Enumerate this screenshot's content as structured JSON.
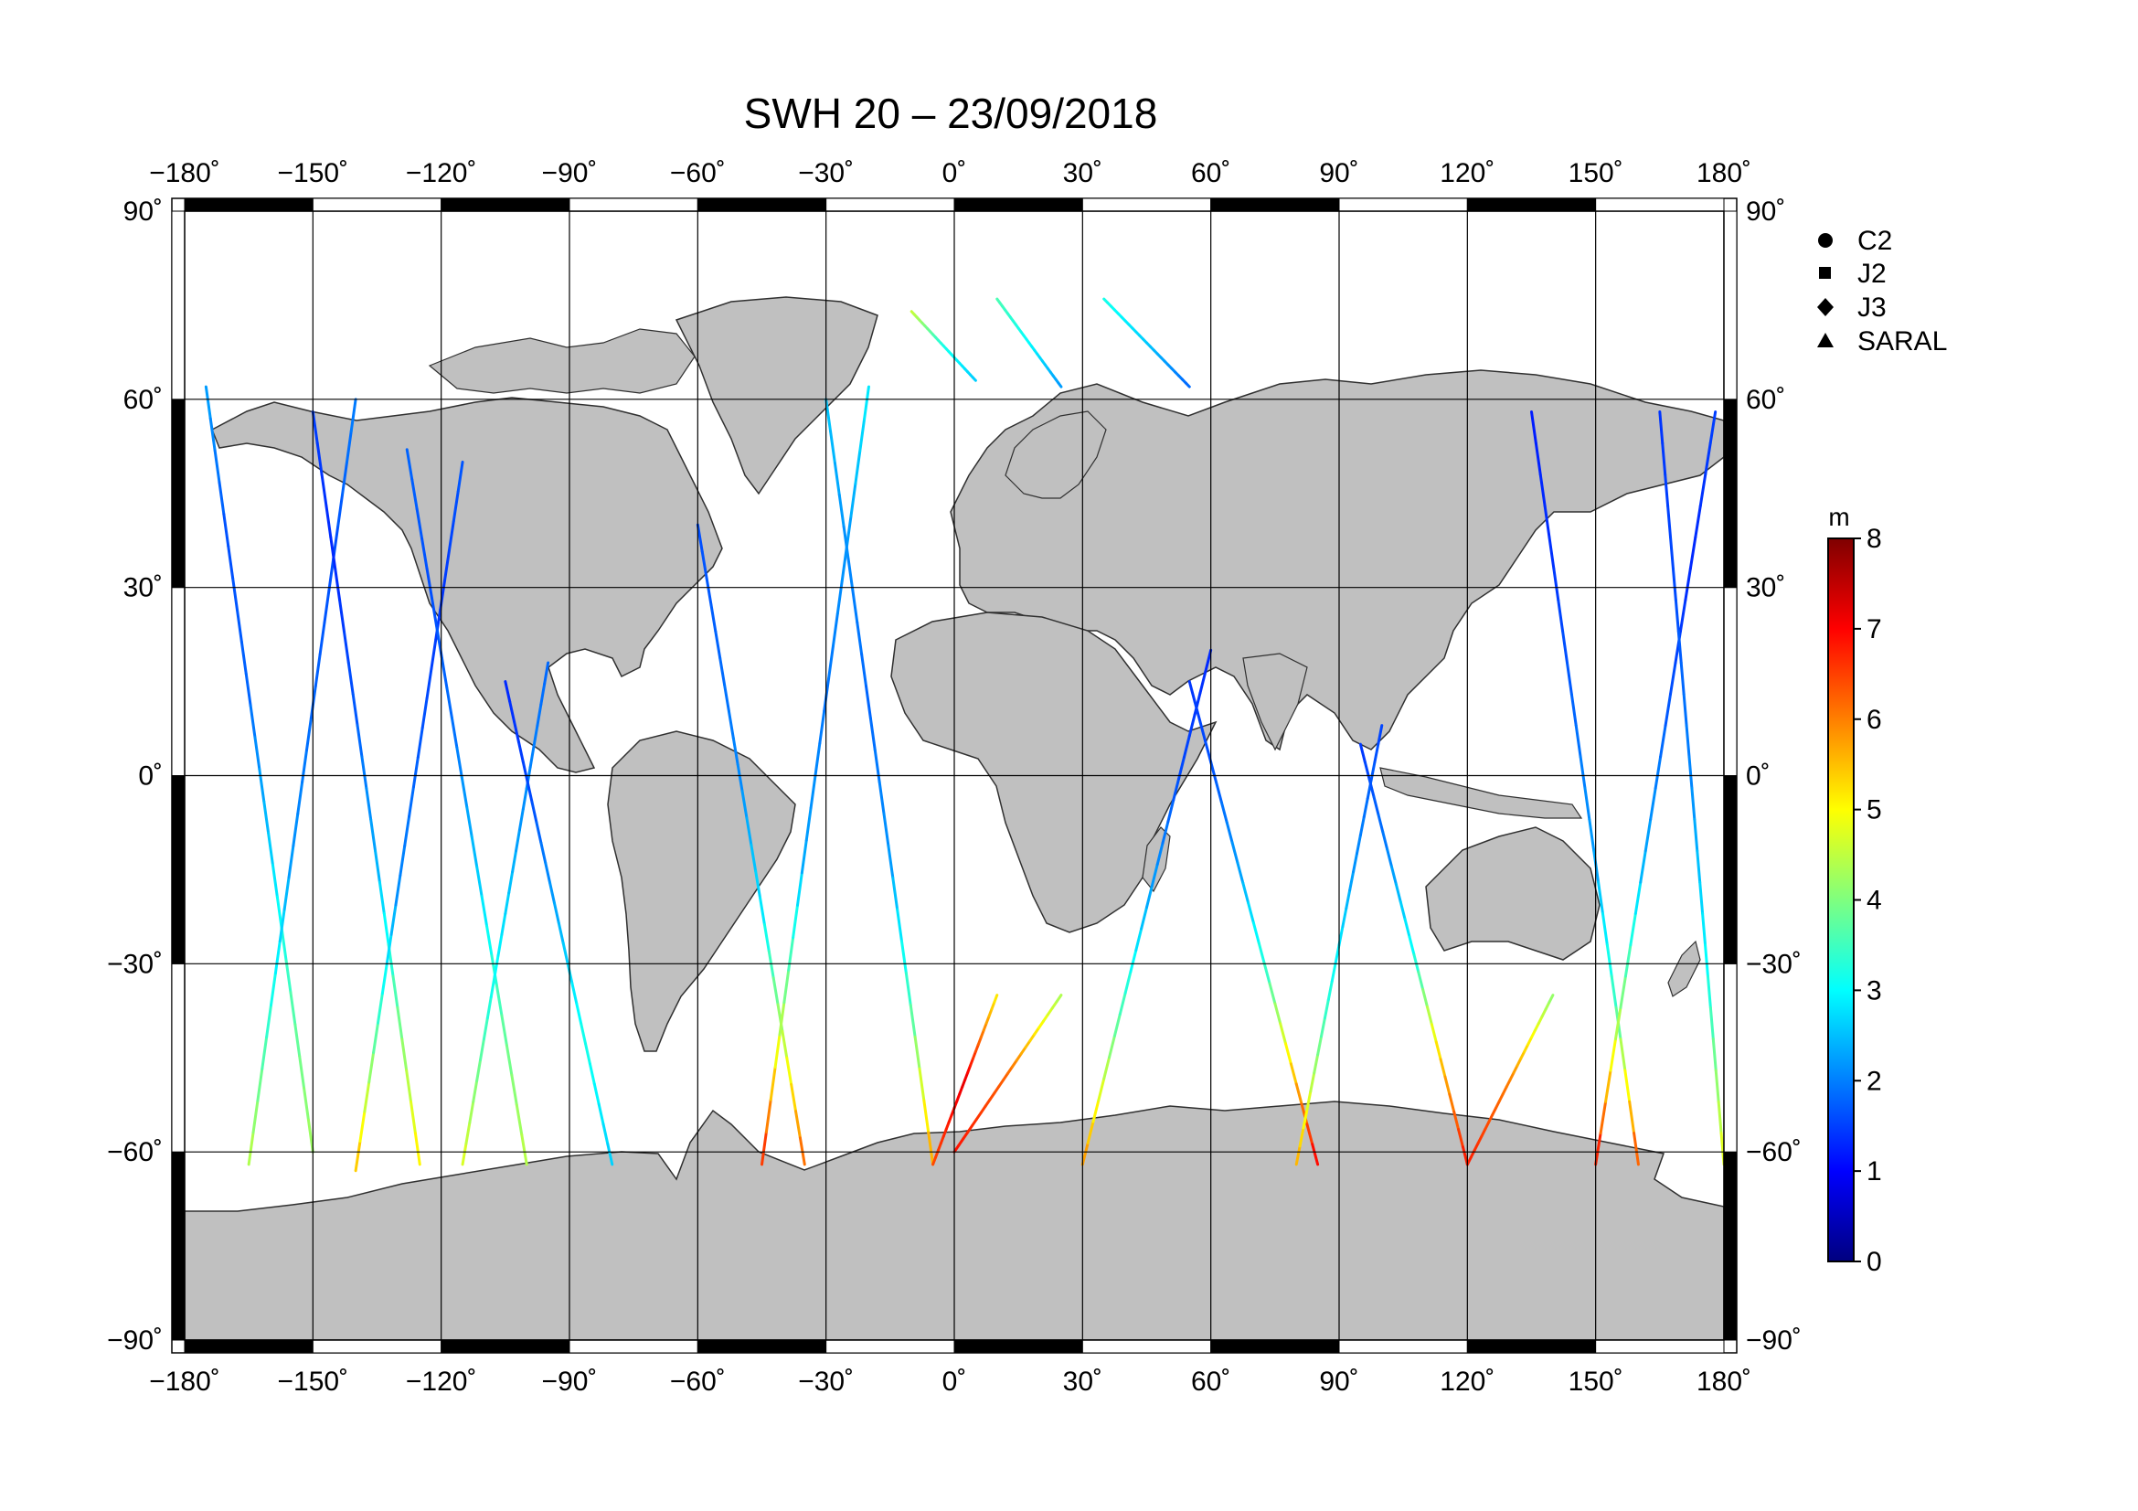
{
  "title": "SWH 20 – 23/09/2018",
  "map": {
    "lon_range": [
      -180,
      180
    ],
    "lat_range": [
      -90,
      90
    ],
    "grid_lons": [
      -180,
      -150,
      -120,
      -90,
      -60,
      -30,
      0,
      30,
      60,
      90,
      120,
      150,
      180
    ],
    "grid_lats": [
      -90,
      -60,
      -30,
      0,
      30,
      60,
      90
    ],
    "lon_tick_labels": [
      "−180˚",
      "−150˚",
      "−120˚",
      "−90˚",
      "−60˚",
      "−30˚",
      "0˚",
      "30˚",
      "60˚",
      "90˚",
      "120˚",
      "150˚",
      "180˚"
    ],
    "lat_tick_labels": [
      "90˚",
      "60˚",
      "30˚",
      "0˚",
      "−30˚",
      "−60˚",
      "−90˚"
    ],
    "land_color": "#c0c0c0",
    "ocean_color": "#ffffff"
  },
  "legend": {
    "placement": "top-right",
    "items": [
      {
        "label": "C2",
        "symbol": "circle"
      },
      {
        "label": "J2",
        "symbol": "square"
      },
      {
        "label": "J3",
        "symbol": "diamond"
      },
      {
        "label": "SARAL",
        "symbol": "triangle"
      }
    ]
  },
  "colorbar": {
    "unit": "m",
    "min": 0,
    "max": 8,
    "tick_labels": [
      "0",
      "1",
      "2",
      "3",
      "4",
      "5",
      "6",
      "7",
      "8"
    ],
    "colormap": [
      "#00007f",
      "#0000ff",
      "#007fff",
      "#00ffff",
      "#7fff7f",
      "#ffff00",
      "#ff7f00",
      "#ff0000",
      "#7f0000"
    ]
  },
  "chart_data": {
    "type": "map",
    "variable": "SWH",
    "unit": "m",
    "value_range": [
      0,
      8
    ],
    "tracks": [
      {
        "lon0": -175,
        "lat0": 62,
        "lon1": -150,
        "lat1": -60,
        "swh": [
          2.3,
          1.6,
          1.8,
          2.6,
          3.6,
          4.3
        ]
      },
      {
        "lon0": -165,
        "lat0": -62,
        "lon1": -140,
        "lat1": 60,
        "swh": [
          4.5,
          3.3,
          2.2,
          1.8,
          1.6,
          2.0
        ]
      },
      {
        "lon0": -150,
        "lat0": 58,
        "lon1": -125,
        "lat1": -62,
        "swh": [
          1.5,
          1.3,
          1.7,
          2.4,
          3.8,
          5.2
        ]
      },
      {
        "lon0": -140,
        "lat0": -63,
        "lon1": -115,
        "lat1": 50,
        "swh": [
          5.6,
          3.6,
          2.1,
          1.7,
          1.4,
          1.7
        ]
      },
      {
        "lon0": -128,
        "lat0": 52,
        "lon1": -100,
        "lat1": -62,
        "swh": [
          1.8,
          1.6,
          1.9,
          2.6,
          3.7,
          4.5
        ]
      },
      {
        "lon0": -115,
        "lat0": -62,
        "lon1": -95,
        "lat1": 18,
        "swh": [
          4.8,
          3.2,
          2.2,
          1.8
        ]
      },
      {
        "lon0": -105,
        "lat0": 15,
        "lon1": -80,
        "lat1": -62,
        "swh": [
          1.3,
          1.6,
          2.4,
          3.2,
          2.6
        ]
      },
      {
        "lon0": -60,
        "lat0": 40,
        "lon1": -35,
        "lat1": -62,
        "swh": [
          1.6,
          1.8,
          2.1,
          2.8,
          4.4,
          6.3
        ]
      },
      {
        "lon0": -45,
        "lat0": -62,
        "lon1": -20,
        "lat1": 62,
        "swh": [
          6.8,
          4.2,
          2.3,
          1.9,
          2.2,
          2.9
        ]
      },
      {
        "lon0": -30,
        "lat0": 60,
        "lon1": -5,
        "lat1": -62,
        "swh": [
          2.6,
          2.1,
          1.8,
          2.2,
          3.6,
          5.8
        ]
      },
      {
        "lon0": -5,
        "lat0": -62,
        "lon1": 10,
        "lat1": -35,
        "swh": [
          6.4,
          7.2,
          5.1
        ]
      },
      {
        "lon0": 0,
        "lat0": -60,
        "lon1": 25,
        "lat1": -35,
        "swh": [
          6.9,
          6.2,
          4.3
        ]
      },
      {
        "lon0": 30,
        "lat0": -62,
        "lon1": 60,
        "lat1": 20,
        "swh": [
          5.9,
          3.9,
          2.4,
          1.6,
          1.3
        ]
      },
      {
        "lon0": 55,
        "lat0": 15,
        "lon1": 85,
        "lat1": -62,
        "swh": [
          1.4,
          1.7,
          2.3,
          3.4,
          5.3,
          7.1
        ]
      },
      {
        "lon0": 80,
        "lat0": -62,
        "lon1": 100,
        "lat1": 8,
        "swh": [
          5.7,
          3.5,
          2.2,
          1.5
        ]
      },
      {
        "lon0": 95,
        "lat0": 5,
        "lon1": 120,
        "lat1": -62,
        "swh": [
          1.4,
          2.0,
          3.1,
          5.4,
          6.9
        ]
      },
      {
        "lon0": 120,
        "lat0": -62,
        "lon1": 140,
        "lat1": -35,
        "swh": [
          6.8,
          6.0,
          4.1
        ]
      },
      {
        "lon0": 135,
        "lat0": 58,
        "lon1": 160,
        "lat1": -62,
        "swh": [
          1.2,
          1.4,
          1.8,
          2.3,
          3.6,
          6.5
        ]
      },
      {
        "lon0": 150,
        "lat0": -62,
        "lon1": 178,
        "lat1": 58,
        "swh": [
          7.0,
          4.2,
          2.4,
          1.7,
          1.3,
          1.5
        ]
      },
      {
        "lon0": 165,
        "lat0": 58,
        "lon1": 180,
        "lat1": -62,
        "swh": [
          1.4,
          1.6,
          2.1,
          3.1,
          4.9
        ]
      },
      {
        "lon0": -10,
        "lat0": 74,
        "lon1": 5,
        "lat1": 63,
        "swh": [
          4.6,
          3.2,
          2.6
        ]
      },
      {
        "lon0": 10,
        "lat0": 76,
        "lon1": 25,
        "lat1": 62,
        "swh": [
          3.6,
          3.0,
          2.2
        ]
      },
      {
        "lon0": 35,
        "lat0": 76,
        "lon1": 55,
        "lat1": 62,
        "swh": [
          3.2,
          2.6,
          1.8
        ]
      }
    ]
  }
}
